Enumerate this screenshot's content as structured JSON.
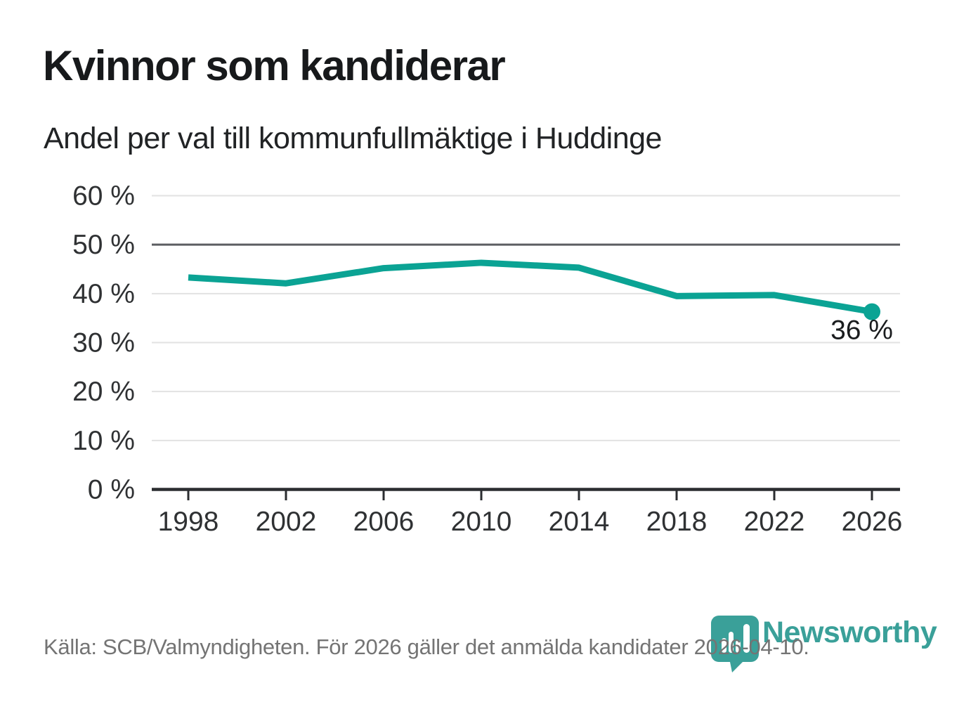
{
  "page": {
    "title": "Kvinnor som kandiderar",
    "subtitle": "Andel per val till kommunfullmäktige i Huddinge",
    "source": "Källa: SCB/Valmyndigheten. För 2026 gäller det anmälda kandidater 2026-04-10.",
    "branding": {
      "wordmark": "Newsworthy"
    }
  },
  "colors": {
    "line": "#0ba394",
    "grid": "#e2e2e2",
    "grid_emphasis": "#5c5e62",
    "axis": "#2b2d30",
    "axis_text": "#2f3133",
    "annotation_text": "#1a1c1e",
    "footer_text": "#747474",
    "brand_teal": "#3aa099"
  },
  "chart_data": {
    "type": "line",
    "title": "Kvinnor som kandiderar",
    "subtitle": "Andel per val till kommunfullmäktige i Huddinge",
    "x": [
      "1998",
      "2002",
      "2006",
      "2010",
      "2014",
      "2018",
      "2022",
      "2026"
    ],
    "values": [
      43.3,
      42.1,
      45.2,
      46.3,
      45.3,
      39.5,
      39.7,
      36.3
    ],
    "ylim": [
      0,
      60
    ],
    "ytick_step": 10,
    "ytick_suffix": " %",
    "emphasized_gridline": 50,
    "end_label": "36 %",
    "grid": "horizontal",
    "legend": "none"
  }
}
